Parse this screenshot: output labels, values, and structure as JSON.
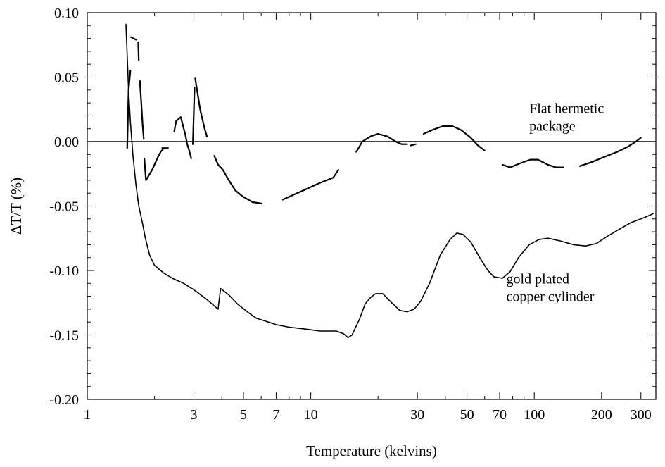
{
  "chart_data": {
    "type": "line",
    "title": "",
    "xlabel": "Temperature (kelvins)",
    "ylabel": "ΔT/T (%)",
    "xscale": "log",
    "xlim": [
      1,
      350
    ],
    "ylim": [
      -0.2,
      0.1
    ],
    "grid": false,
    "legend": "none",
    "x_ticks": [
      1,
      3,
      5,
      7,
      10,
      30,
      50,
      70,
      100,
      200,
      300
    ],
    "x_tick_labels": [
      "1",
      "3",
      "5",
      "7",
      "10",
      "30",
      "50",
      "70",
      "100",
      "200",
      "300"
    ],
    "y_ticks": [
      0.1,
      0.05,
      0.0,
      -0.05,
      -0.1,
      -0.15,
      -0.2
    ],
    "y_tick_labels": [
      "0.10",
      "0.05",
      "0.00",
      "-0.05",
      "-0.10",
      "-0.15",
      "-0.20"
    ],
    "reference_line": {
      "y": 0.0
    },
    "annotations": [
      {
        "lines": [
          "Flat hermetic",
          "package"
        ],
        "x": 95,
        "y": 0.022
      },
      {
        "lines": [
          "gold plated",
          "copper cylinder"
        ],
        "x": 75,
        "y": -0.11
      }
    ],
    "series": [
      {
        "style": "dashed",
        "segments": [
          [
            [
              1.51,
              -0.005
            ],
            [
              1.53,
              0.04
            ],
            [
              1.56,
              0.055
            ]
          ],
          [
            [
              1.57,
              0.081
            ],
            [
              1.65,
              0.079
            ]
          ],
          [
            [
              1.69,
              0.077
            ],
            [
              1.7,
              0.063
            ]
          ],
          [
            [
              1.72,
              0.047
            ],
            [
              1.77,
              0.012
            ],
            [
              1.79,
              0.002
            ]
          ],
          [
            [
              1.8,
              -0.013
            ],
            [
              1.83,
              -0.03
            ],
            [
              1.95,
              -0.022
            ],
            [
              2.07,
              -0.012
            ],
            [
              2.13,
              -0.008
            ],
            [
              2.18,
              -0.006
            ]
          ],
          [
            [
              2.23,
              -0.005
            ]
          ],
          [
            [
              2.45,
              0.008
            ],
            [
              2.5,
              0.016
            ],
            [
              2.62,
              0.019
            ],
            [
              2.75,
              0.005
            ],
            [
              2.8,
              -0.002
            ],
            [
              2.86,
              -0.007
            ],
            [
              2.92,
              -0.013
            ]
          ],
          [
            [
              2.97,
              -0.002
            ],
            [
              3.02,
              0.042
            ]
          ],
          [
            [
              3.04,
              0.049
            ],
            [
              3.2,
              0.025
            ],
            [
              3.35,
              0.01
            ],
            [
              3.43,
              0.004
            ]
          ],
          [
            [
              3.7,
              -0.011
            ],
            [
              3.85,
              -0.018
            ],
            [
              4.05,
              -0.022
            ],
            [
              4.3,
              -0.03
            ],
            [
              4.6,
              -0.038
            ],
            [
              5.0,
              -0.043
            ],
            [
              5.5,
              -0.047
            ],
            [
              6.0,
              -0.048
            ]
          ],
          [
            [
              7.5,
              -0.045
            ],
            [
              8.2,
              -0.042
            ],
            [
              9.5,
              -0.037
            ],
            [
              11.0,
              -0.032
            ],
            [
              12.6,
              -0.028
            ],
            [
              13.3,
              -0.022
            ]
          ],
          [
            [
              16.0,
              -0.008
            ],
            [
              17.0,
              0.0
            ],
            [
              18.5,
              0.004
            ],
            [
              20.0,
              0.006
            ],
            [
              22.0,
              0.004
            ],
            [
              24.0,
              0.0
            ],
            [
              25.5,
              -0.002
            ],
            [
              27.0,
              -0.002
            ]
          ],
          [
            [
              28.0,
              -0.003
            ],
            [
              29.5,
              -0.002
            ]
          ],
          [
            [
              32.0,
              0.006
            ],
            [
              35.0,
              0.009
            ],
            [
              39.0,
              0.012
            ],
            [
              43.0,
              0.012
            ],
            [
              47.0,
              0.009
            ],
            [
              52.0,
              0.003
            ],
            [
              56.0,
              -0.003
            ],
            [
              60.0,
              -0.007
            ]
          ],
          [
            [
              72.0,
              -0.018
            ],
            [
              78.0,
              -0.02
            ],
            [
              86.0,
              -0.017
            ],
            [
              96.0,
              -0.014
            ],
            [
              104.0,
              -0.014
            ],
            [
              115.0,
              -0.018
            ],
            [
              125.0,
              -0.02
            ],
            [
              135.0,
              -0.02
            ]
          ],
          [
            [
              160.0,
              -0.019
            ],
            [
              180.0,
              -0.016
            ],
            [
              205.0,
              -0.012
            ],
            [
              235.0,
              -0.008
            ],
            [
              262.0,
              -0.004
            ],
            [
              285.0,
              0.0
            ],
            [
              300.0,
              0.003
            ]
          ]
        ]
      },
      {
        "style": "solid",
        "points": [
          [
            1.49,
            0.091
          ],
          [
            1.53,
            0.04
          ],
          [
            1.56,
            0.015
          ],
          [
            1.6,
            -0.01
          ],
          [
            1.65,
            -0.033
          ],
          [
            1.7,
            -0.05
          ],
          [
            1.76,
            -0.062
          ],
          [
            1.82,
            -0.075
          ],
          [
            1.9,
            -0.088
          ],
          [
            2.0,
            -0.096
          ],
          [
            2.2,
            -0.102
          ],
          [
            2.4,
            -0.106
          ],
          [
            2.7,
            -0.11
          ],
          [
            3.0,
            -0.115
          ],
          [
            3.4,
            -0.122
          ],
          [
            3.85,
            -0.13
          ],
          [
            3.95,
            -0.114
          ],
          [
            4.3,
            -0.119
          ],
          [
            4.7,
            -0.126
          ],
          [
            5.2,
            -0.132
          ],
          [
            5.7,
            -0.137
          ],
          [
            6.2,
            -0.139
          ],
          [
            7.0,
            -0.142
          ],
          [
            8.0,
            -0.144
          ],
          [
            9.0,
            -0.145
          ],
          [
            10.0,
            -0.146
          ],
          [
            11.0,
            -0.147
          ],
          [
            12.0,
            -0.147
          ],
          [
            13.0,
            -0.147
          ],
          [
            14.0,
            -0.149
          ],
          [
            14.7,
            -0.152
          ],
          [
            15.3,
            -0.15
          ],
          [
            16.5,
            -0.138
          ],
          [
            17.5,
            -0.126
          ],
          [
            18.5,
            -0.121
          ],
          [
            19.5,
            -0.118
          ],
          [
            21.0,
            -0.118
          ],
          [
            23.0,
            -0.125
          ],
          [
            25.0,
            -0.131
          ],
          [
            27.0,
            -0.132
          ],
          [
            29.0,
            -0.13
          ],
          [
            31.0,
            -0.124
          ],
          [
            34.0,
            -0.11
          ],
          [
            38.0,
            -0.088
          ],
          [
            42.0,
            -0.076
          ],
          [
            45.0,
            -0.071
          ],
          [
            48.0,
            -0.072
          ],
          [
            52.0,
            -0.078
          ],
          [
            57.0,
            -0.09
          ],
          [
            62.0,
            -0.1
          ],
          [
            66.0,
            -0.105
          ],
          [
            72.0,
            -0.106
          ],
          [
            78.0,
            -0.101
          ],
          [
            85.0,
            -0.09
          ],
          [
            95.0,
            -0.08
          ],
          [
            105.0,
            -0.076
          ],
          [
            115.0,
            -0.075
          ],
          [
            130.0,
            -0.077
          ],
          [
            150.0,
            -0.08
          ],
          [
            170.0,
            -0.081
          ],
          [
            190.0,
            -0.079
          ],
          [
            210.0,
            -0.074
          ],
          [
            240.0,
            -0.068
          ],
          [
            270.0,
            -0.063
          ],
          [
            310.0,
            -0.059
          ],
          [
            340.0,
            -0.056
          ]
        ]
      }
    ]
  }
}
